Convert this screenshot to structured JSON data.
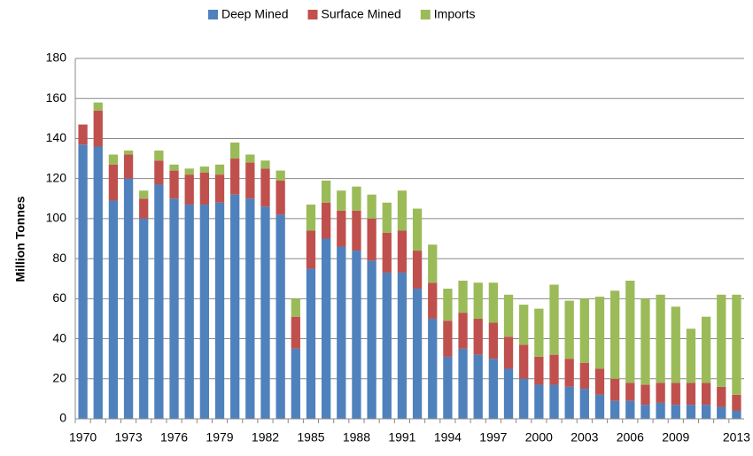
{
  "chart_data": {
    "type": "bar",
    "stacked": true,
    "y_label": "Million Tonnes",
    "categories": [
      "1970",
      null,
      null,
      "1973",
      null,
      null,
      "1976",
      null,
      null,
      "1979",
      null,
      null,
      "1982",
      null,
      null,
      "1985",
      null,
      null,
      "1988",
      null,
      null,
      "1991",
      null,
      null,
      "1994",
      null,
      null,
      "1997",
      null,
      null,
      "2000",
      null,
      null,
      "2003",
      null,
      null,
      "2006",
      null,
      null,
      "2009",
      null,
      null,
      null,
      "2013"
    ],
    "series": [
      {
        "name": "Deep Mined",
        "color": "#4f81bd",
        "values": [
          137,
          136,
          109,
          120,
          100,
          117,
          110,
          107,
          107,
          108,
          112,
          110,
          106,
          102,
          35,
          75,
          90,
          86,
          84,
          79,
          73,
          73,
          65,
          50,
          31,
          35,
          32,
          30,
          25,
          20,
          17,
          17,
          16,
          15,
          12,
          9,
          9,
          7,
          8,
          7,
          7,
          7,
          6,
          4
        ]
      },
      {
        "name": "Surface Mined",
        "color": "#c0504d",
        "values": [
          10,
          18,
          18,
          12,
          10,
          12,
          14,
          15,
          16,
          14,
          18,
          18,
          19,
          17,
          16,
          19,
          18,
          18,
          20,
          21,
          20,
          21,
          19,
          18,
          18,
          18,
          18,
          18,
          16,
          17,
          14,
          15,
          14,
          13,
          13,
          11,
          9,
          10,
          10,
          11,
          11,
          11,
          10,
          8
        ]
      },
      {
        "name": "Imports",
        "color": "#9bbb59",
        "values": [
          0,
          4,
          5,
          2,
          4,
          5,
          3,
          3,
          3,
          5,
          8,
          4,
          4,
          5,
          9,
          13,
          11,
          10,
          12,
          12,
          15,
          20,
          21,
          19,
          16,
          16,
          18,
          20,
          21,
          20,
          24,
          35,
          29,
          32,
          36,
          44,
          51,
          43,
          44,
          38,
          27,
          33,
          46,
          50
        ]
      }
    ],
    "ylim": [
      0,
      180
    ],
    "yticks": [
      0,
      20,
      40,
      60,
      80,
      100,
      120,
      140,
      160,
      180
    ],
    "grid": true,
    "legend": "top"
  }
}
